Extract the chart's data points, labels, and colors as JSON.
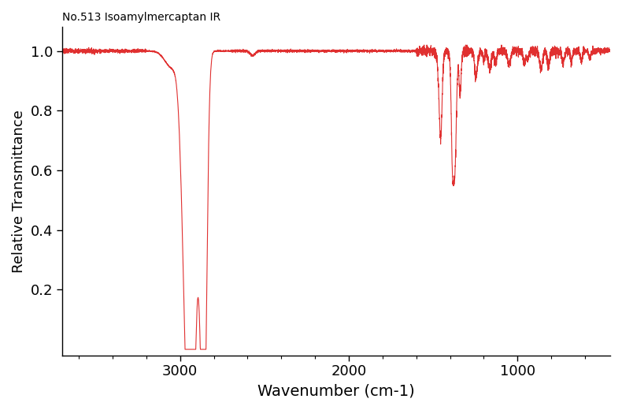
{
  "title": "No.513 Isoamylmercaptan IR",
  "xlabel": "Wavenumber (cm-1)",
  "ylabel": "Relative Transmittance",
  "line_color": "#e03030",
  "background_color": "#ffffff",
  "xlim": [
    3700,
    450
  ],
  "ylim": [
    -0.02,
    1.08
  ],
  "yticks": [
    0.2,
    0.4,
    0.6,
    0.8,
    1.0
  ],
  "xticks": [
    3000,
    2000,
    1000
  ],
  "title_fontsize": 10,
  "axis_fontsize": 13,
  "xlabel_fontsize": 14
}
